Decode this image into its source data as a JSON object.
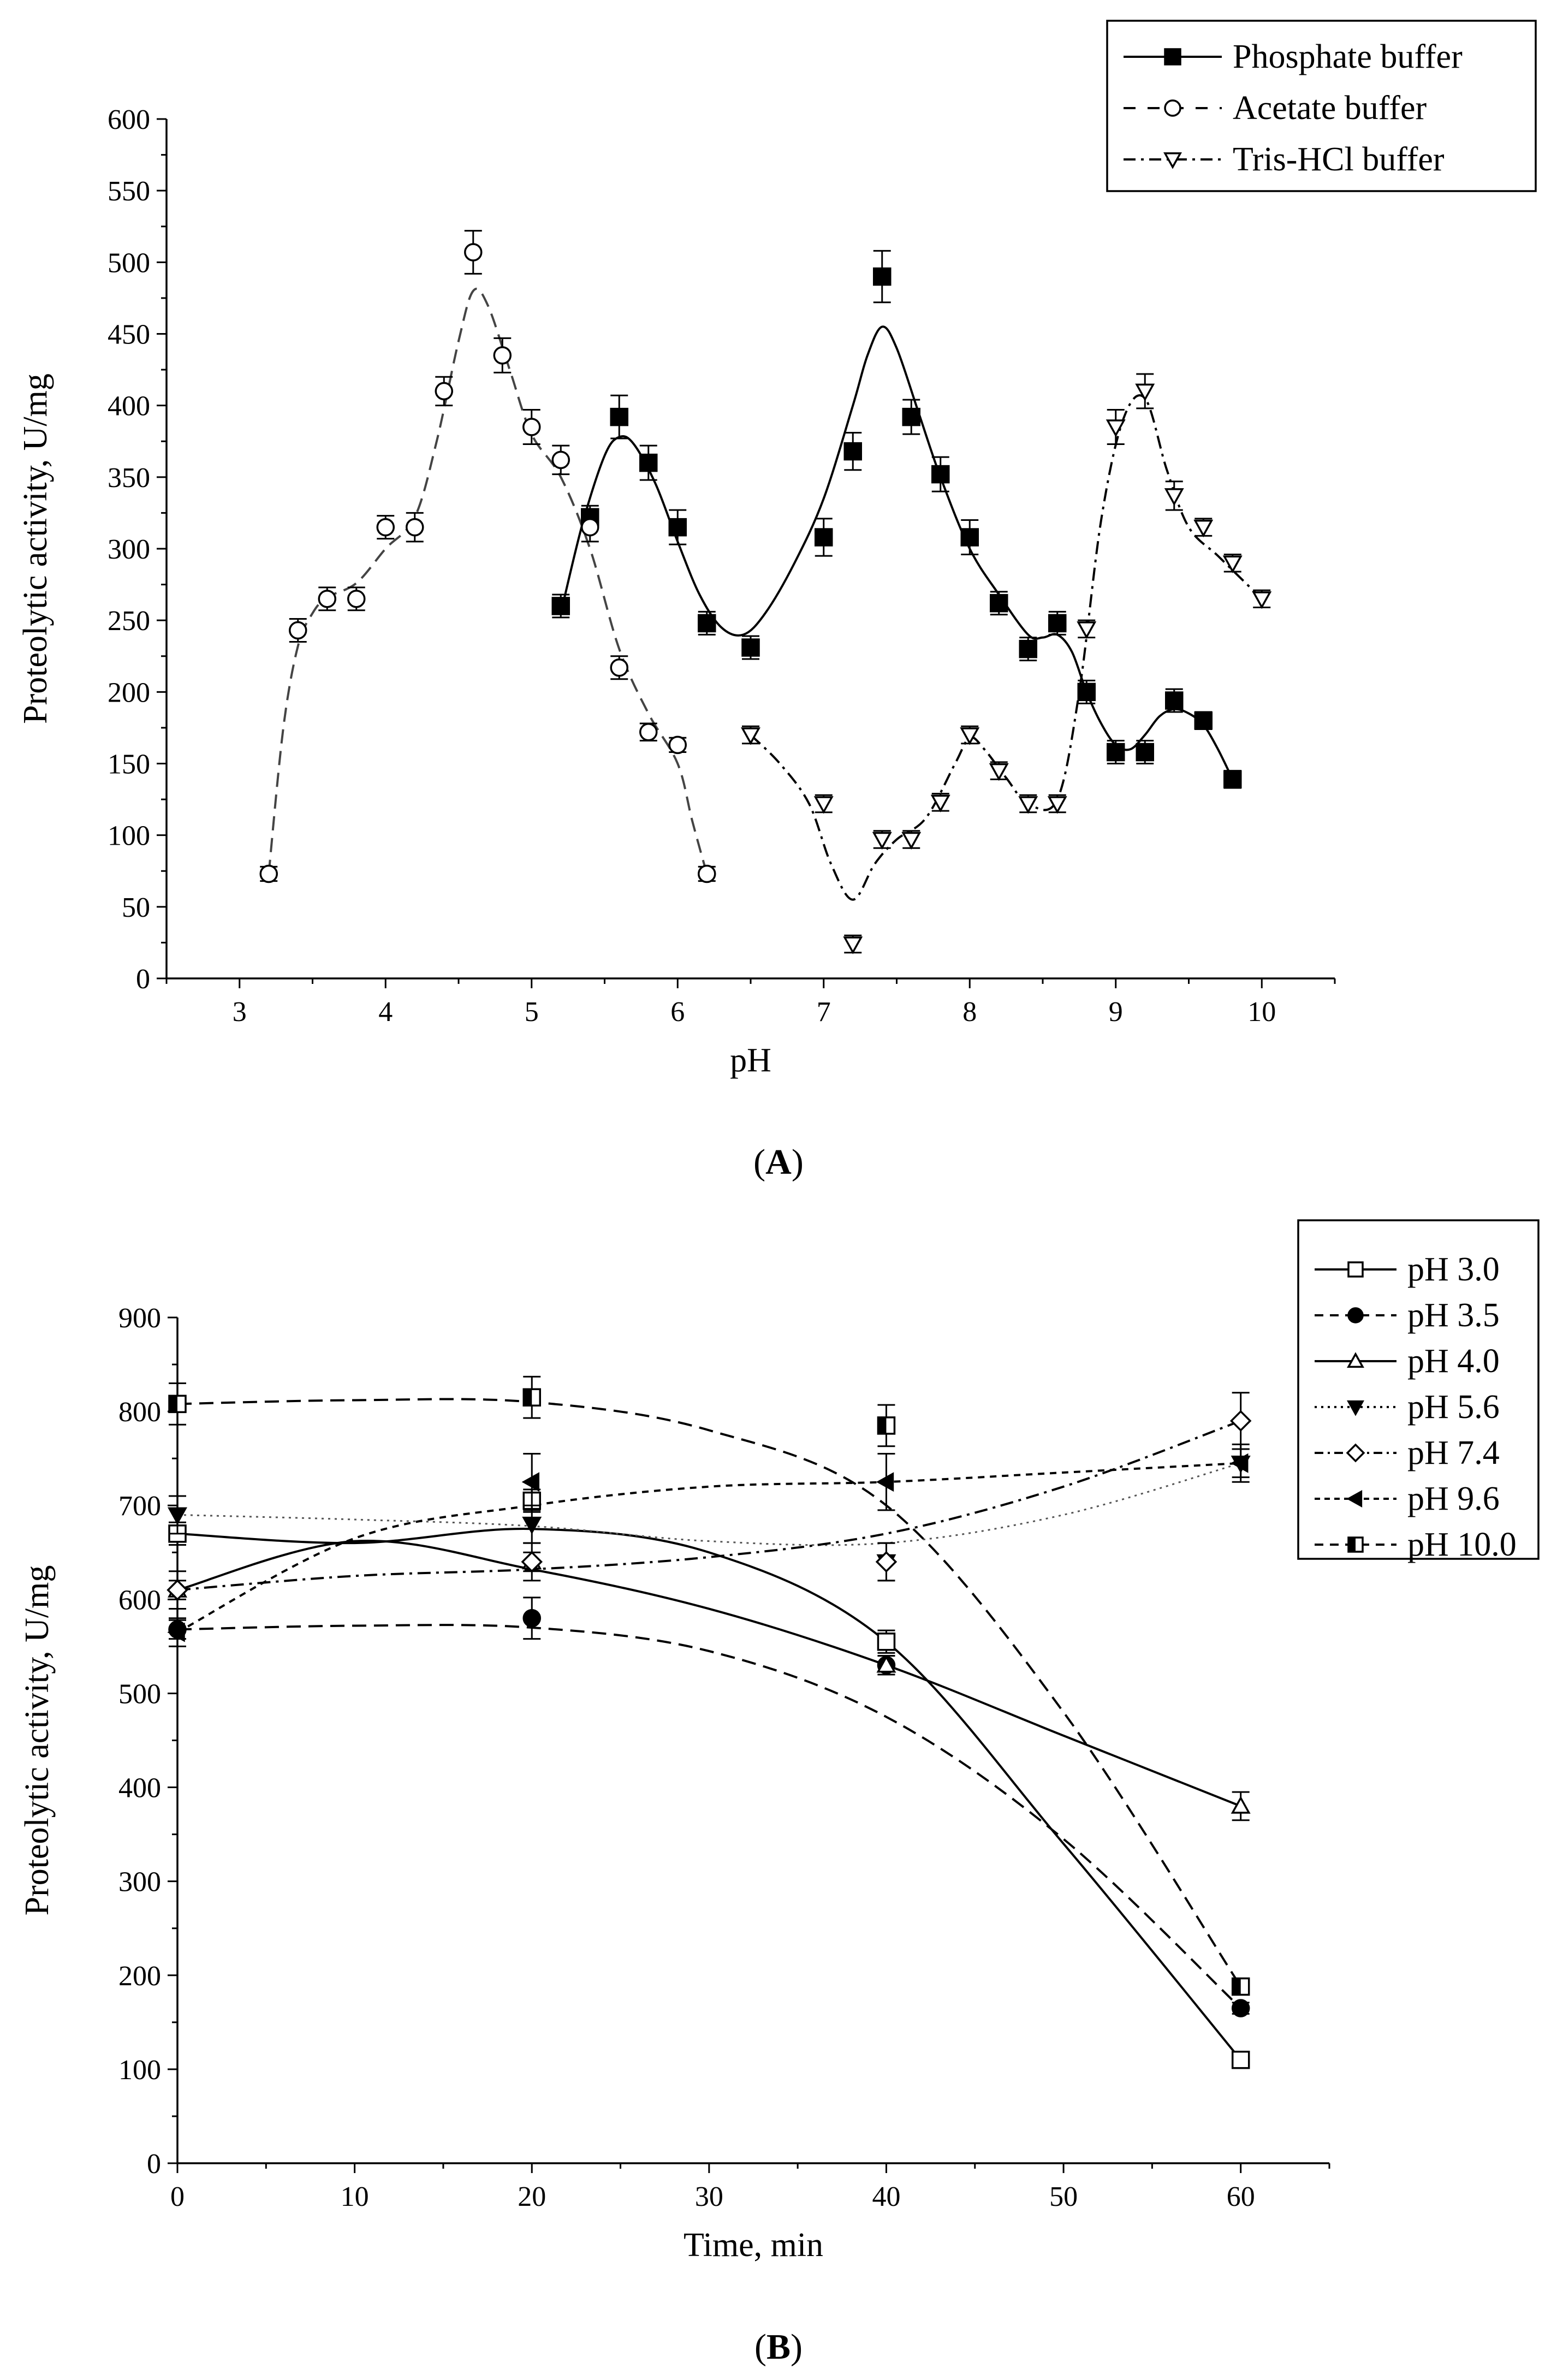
{
  "figure": {
    "panel_a_label": "(A)",
    "panel_b_label": "(B)",
    "panel_a_letter": "A",
    "panel_b_letter": "B"
  },
  "chart_data": [
    {
      "id": "A",
      "type": "scatter",
      "xlabel": "pH",
      "ylabel": "Proteolytic activity, U/mg",
      "xlim": [
        2.5,
        10.5
      ],
      "ylim": [
        0,
        600
      ],
      "xticks": [
        3,
        4,
        5,
        6,
        7,
        8,
        9,
        10
      ],
      "yticks": [
        0,
        50,
        100,
        150,
        200,
        250,
        300,
        350,
        400,
        450,
        500,
        550,
        600
      ],
      "legend_position": "top-right",
      "series": [
        {
          "name": "Phosphate buffer",
          "marker": "filled-square",
          "line": "solid",
          "x": [
            5.2,
            5.4,
            5.6,
            5.8,
            6.0,
            6.2,
            6.5,
            7.0,
            7.2,
            7.4,
            7.6,
            7.8,
            8.0,
            8.2,
            8.4,
            8.6,
            8.8,
            9.0,
            9.2,
            9.4,
            9.6,
            9.8
          ],
          "y": [
            260,
            322,
            392,
            360,
            315,
            248,
            231,
            308,
            368,
            490,
            392,
            352,
            308,
            262,
            230,
            248,
            200,
            158,
            158,
            194,
            180,
            139
          ],
          "err": [
            8,
            8,
            15,
            12,
            12,
            8,
            8,
            13,
            13,
            18,
            12,
            12,
            12,
            8,
            8,
            8,
            8,
            8,
            8,
            8,
            6,
            6
          ],
          "curve_x": [
            5.2,
            5.35,
            5.5,
            5.6,
            5.7,
            5.85,
            6.0,
            6.15,
            6.3,
            6.45,
            6.6,
            6.8,
            7.0,
            7.2,
            7.3,
            7.4,
            7.5,
            7.65,
            7.8,
            8.0,
            8.2,
            8.4,
            8.5,
            8.6,
            8.7,
            8.8,
            8.9,
            9.0,
            9.1,
            9.2,
            9.3,
            9.4,
            9.5,
            9.6,
            9.7,
            9.8
          ],
          "curve_y": [
            255,
            318,
            365,
            378,
            373,
            345,
            305,
            268,
            245,
            240,
            255,
            290,
            335,
            400,
            435,
            455,
            440,
            395,
            350,
            300,
            268,
            240,
            238,
            240,
            228,
            200,
            178,
            163,
            160,
            170,
            183,
            188,
            185,
            177,
            160,
            139
          ]
        },
        {
          "name": "Acetate buffer",
          "marker": "open-circle",
          "line": "dashed",
          "x": [
            3.2,
            3.4,
            3.6,
            3.8,
            4.0,
            4.2,
            4.4,
            4.6,
            4.8,
            5.0,
            5.2,
            5.4,
            5.6,
            5.8,
            6.0,
            6.2
          ],
          "y": [
            73,
            243,
            265,
            265,
            315,
            315,
            410,
            507,
            435,
            385,
            362,
            315,
            217,
            172,
            163,
            73
          ],
          "err": [
            5,
            8,
            8,
            8,
            8,
            10,
            10,
            15,
            12,
            12,
            10,
            10,
            8,
            6,
            5,
            5
          ],
          "curve_x": [
            3.2,
            3.3,
            3.4,
            3.5,
            3.6,
            3.8,
            4.0,
            4.2,
            4.35,
            4.5,
            4.6,
            4.7,
            4.85,
            5.0,
            5.2,
            5.4,
            5.6,
            5.8,
            6.0,
            6.1,
            6.2
          ],
          "curve_y": [
            73,
            175,
            232,
            255,
            266,
            276,
            300,
            322,
            375,
            445,
            480,
            470,
            425,
            380,
            350,
            300,
            230,
            185,
            150,
            110,
            73
          ]
        },
        {
          "name": "Tris-HCl buffer",
          "marker": "open-triangle-down",
          "line": "dash-dot",
          "x": [
            6.5,
            7.0,
            7.2,
            7.4,
            7.6,
            7.8,
            8.0,
            8.2,
            8.4,
            8.6,
            8.8,
            9.0,
            9.2,
            9.4,
            9.6,
            9.8,
            10.0
          ],
          "y": [
            170,
            122,
            24,
            97,
            97,
            123,
            170,
            145,
            122,
            122,
            244,
            385,
            410,
            337,
            315,
            290,
            265
          ],
          "err": [
            6,
            6,
            6,
            6,
            6,
            6,
            6,
            6,
            6,
            6,
            6,
            12,
            12,
            10,
            6,
            6,
            6
          ],
          "curve_x": [
            6.5,
            6.7,
            6.9,
            7.05,
            7.2,
            7.35,
            7.5,
            7.7,
            7.9,
            8.0,
            8.1,
            8.25,
            8.4,
            8.6,
            8.75,
            8.9,
            9.05,
            9.2,
            9.35,
            9.5,
            9.7,
            9.9,
            10.0
          ],
          "curve_y": [
            170,
            150,
            122,
            80,
            55,
            80,
            97,
            112,
            150,
            168,
            160,
            140,
            122,
            125,
            200,
            320,
            390,
            405,
            355,
            315,
            295,
            275,
            265
          ]
        }
      ]
    },
    {
      "id": "B",
      "type": "scatter",
      "xlabel": "Time, min",
      "ylabel": "Proteolytic activity, U/mg",
      "xlim": [
        0,
        65
      ],
      "ylim": [
        0,
        900
      ],
      "xticks": [
        0,
        10,
        20,
        30,
        40,
        50,
        60
      ],
      "yticks": [
        0,
        100,
        200,
        300,
        400,
        500,
        600,
        700,
        800,
        900
      ],
      "legend_position": "top-right",
      "series": [
        {
          "name": "pH 3.0",
          "marker": "open-square",
          "line": "solid",
          "x": [
            0,
            20,
            40,
            60
          ],
          "y": [
            670,
            705,
            555,
            110
          ],
          "err": [
            12,
            12,
            12,
            6
          ]
        },
        {
          "name": "pH 3.5",
          "marker": "filled-circle",
          "line": "dashed",
          "x": [
            0,
            20,
            40,
            60
          ],
          "y": [
            568,
            580,
            530,
            165
          ],
          "err": [
            10,
            22,
            10,
            6
          ]
        },
        {
          "name": "pH 4.0",
          "marker": "open-triangle-up",
          "line": "solid",
          "x": [
            0,
            20,
            40,
            60
          ],
          "y": [
            610,
            640,
            530,
            380
          ],
          "err": [
            10,
            10,
            10,
            15
          ]
        },
        {
          "name": "pH 5.6",
          "marker": "filled-triangle-down",
          "line": "dotted",
          "x": [
            0,
            20,
            40,
            60
          ],
          "y": [
            690,
            680,
            640,
            745
          ],
          "err": [
            20,
            20,
            20,
            20
          ]
        },
        {
          "name": "pH 7.4",
          "marker": "open-diamond",
          "line": "dash-dot",
          "x": [
            0,
            20,
            40,
            60
          ],
          "y": [
            610,
            640,
            640,
            790
          ],
          "err": [
            20,
            20,
            20,
            30
          ]
        },
        {
          "name": "pH 9.6",
          "marker": "filled-triangle-left",
          "line": "short-dash",
          "x": [
            0,
            20,
            40,
            60
          ],
          "y": [
            565,
            725,
            725,
            745
          ],
          "err": [
            15,
            30,
            30,
            15
          ]
        },
        {
          "name": "pH 10.0",
          "marker": "half-filled-square",
          "line": "dashed",
          "x": [
            0,
            20,
            40,
            60
          ],
          "y": [
            808,
            815,
            785,
            188
          ],
          "err": [
            22,
            22,
            22,
            8
          ]
        }
      ],
      "fit_curves": [
        {
          "series": "pH 3.0",
          "x": [
            0,
            10,
            20,
            30,
            40,
            50,
            60
          ],
          "y": [
            670,
            660,
            675,
            650,
            555,
            340,
            110
          ]
        },
        {
          "series": "pH 3.5",
          "x": [
            0,
            10,
            20,
            30,
            40,
            50,
            60
          ],
          "y": [
            568,
            572,
            570,
            545,
            475,
            345,
            165
          ]
        },
        {
          "series": "pH 4.0",
          "x": [
            0,
            10,
            20,
            30,
            40,
            50,
            60
          ],
          "y": [
            610,
            662,
            632,
            590,
            530,
            455,
            380
          ]
        },
        {
          "series": "pH 5.6",
          "x": [
            0,
            10,
            20,
            30,
            40,
            50,
            60
          ],
          "y": [
            690,
            685,
            678,
            662,
            660,
            690,
            745
          ]
        },
        {
          "series": "pH 7.4",
          "x": [
            0,
            10,
            20,
            30,
            40,
            50,
            60
          ],
          "y": [
            610,
            625,
            632,
            645,
            670,
            720,
            790
          ]
        },
        {
          "series": "pH 9.6",
          "x": [
            0,
            10,
            20,
            30,
            40,
            50,
            60
          ],
          "y": [
            565,
            665,
            700,
            720,
            725,
            735,
            745
          ]
        },
        {
          "series": "pH 10.0",
          "x": [
            0,
            10,
            20,
            30,
            40,
            50,
            60
          ],
          "y": [
            808,
            812,
            810,
            780,
            700,
            480,
            188
          ]
        }
      ]
    }
  ]
}
